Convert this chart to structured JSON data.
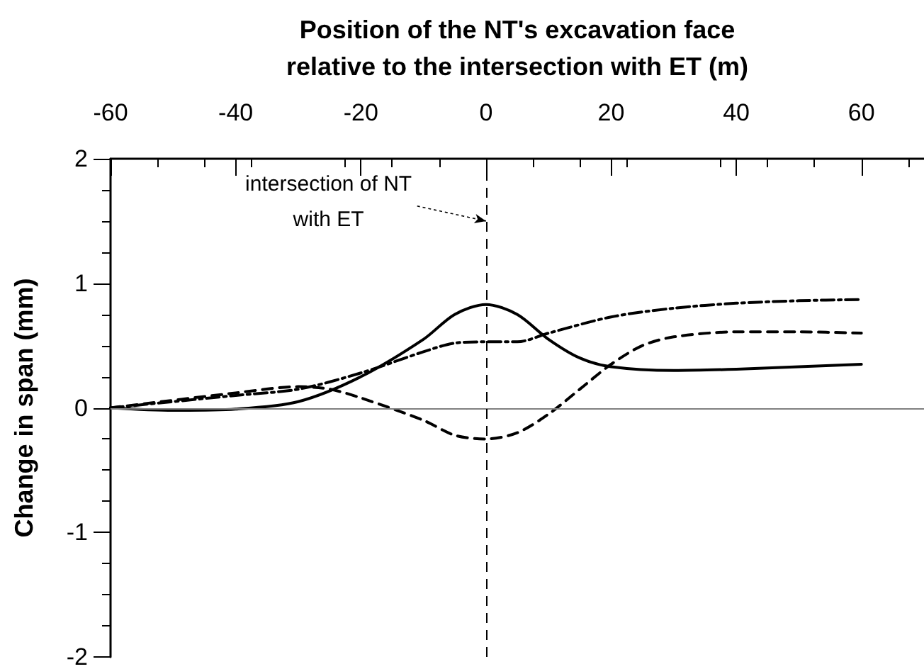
{
  "chart_data": {
    "type": "line",
    "xlabel": "Position of the NT's excavation face\nrelative to the intersection with ET (m)",
    "ylabel": "Change in span (mm)",
    "xlim": [
      -60,
      70
    ],
    "xticks": [
      -60,
      -40,
      -20,
      0,
      20,
      40,
      60
    ],
    "ylim": [
      -2,
      2
    ],
    "yticks": [
      -2,
      -1,
      0,
      1,
      2
    ],
    "grid": false,
    "marker": "none",
    "series": [
      {
        "color": "#000000",
        "line_style": "solid",
        "x": [
          -60,
          -50,
          -40,
          -30,
          -20,
          -10,
          -5,
          0,
          5,
          10,
          15,
          20,
          30,
          40,
          50,
          60
        ],
        "values": [
          0,
          -0.02,
          -0.01,
          0.05,
          0.25,
          0.55,
          0.75,
          0.83,
          0.75,
          0.55,
          0.4,
          0.33,
          0.3,
          0.31,
          0.33,
          0.35
        ]
      },
      {
        "color": "#000000",
        "line_style": "dashed",
        "x": [
          -60,
          -40,
          -30,
          -25,
          -20,
          -10,
          -5,
          0,
          5,
          10,
          15,
          20,
          25,
          30,
          40,
          50,
          60
        ],
        "values": [
          0,
          0.12,
          0.17,
          0.15,
          0.08,
          -0.1,
          -0.22,
          -0.25,
          -0.2,
          -0.05,
          0.15,
          0.35,
          0.5,
          0.57,
          0.61,
          0.61,
          0.6
        ]
      },
      {
        "color": "#000000",
        "line_style": "dashdot",
        "x": [
          -60,
          -40,
          -30,
          -20,
          -10,
          -5,
          0,
          5,
          10,
          20,
          30,
          40,
          50,
          60
        ],
        "values": [
          0,
          0.1,
          0.15,
          0.28,
          0.45,
          0.52,
          0.53,
          0.53,
          0.6,
          0.73,
          0.8,
          0.84,
          0.86,
          0.87
        ]
      }
    ],
    "ref_lines": [
      {
        "axis": "y",
        "value": 0,
        "color": "#808080",
        "line_style": "solid"
      },
      {
        "axis": "x",
        "value": 0,
        "color": "#000000",
        "line_style": "dashed"
      }
    ],
    "annotations": [
      {
        "text": "intersection of NT\nwith ET",
        "x": 0,
        "y": 1.5
      }
    ]
  }
}
